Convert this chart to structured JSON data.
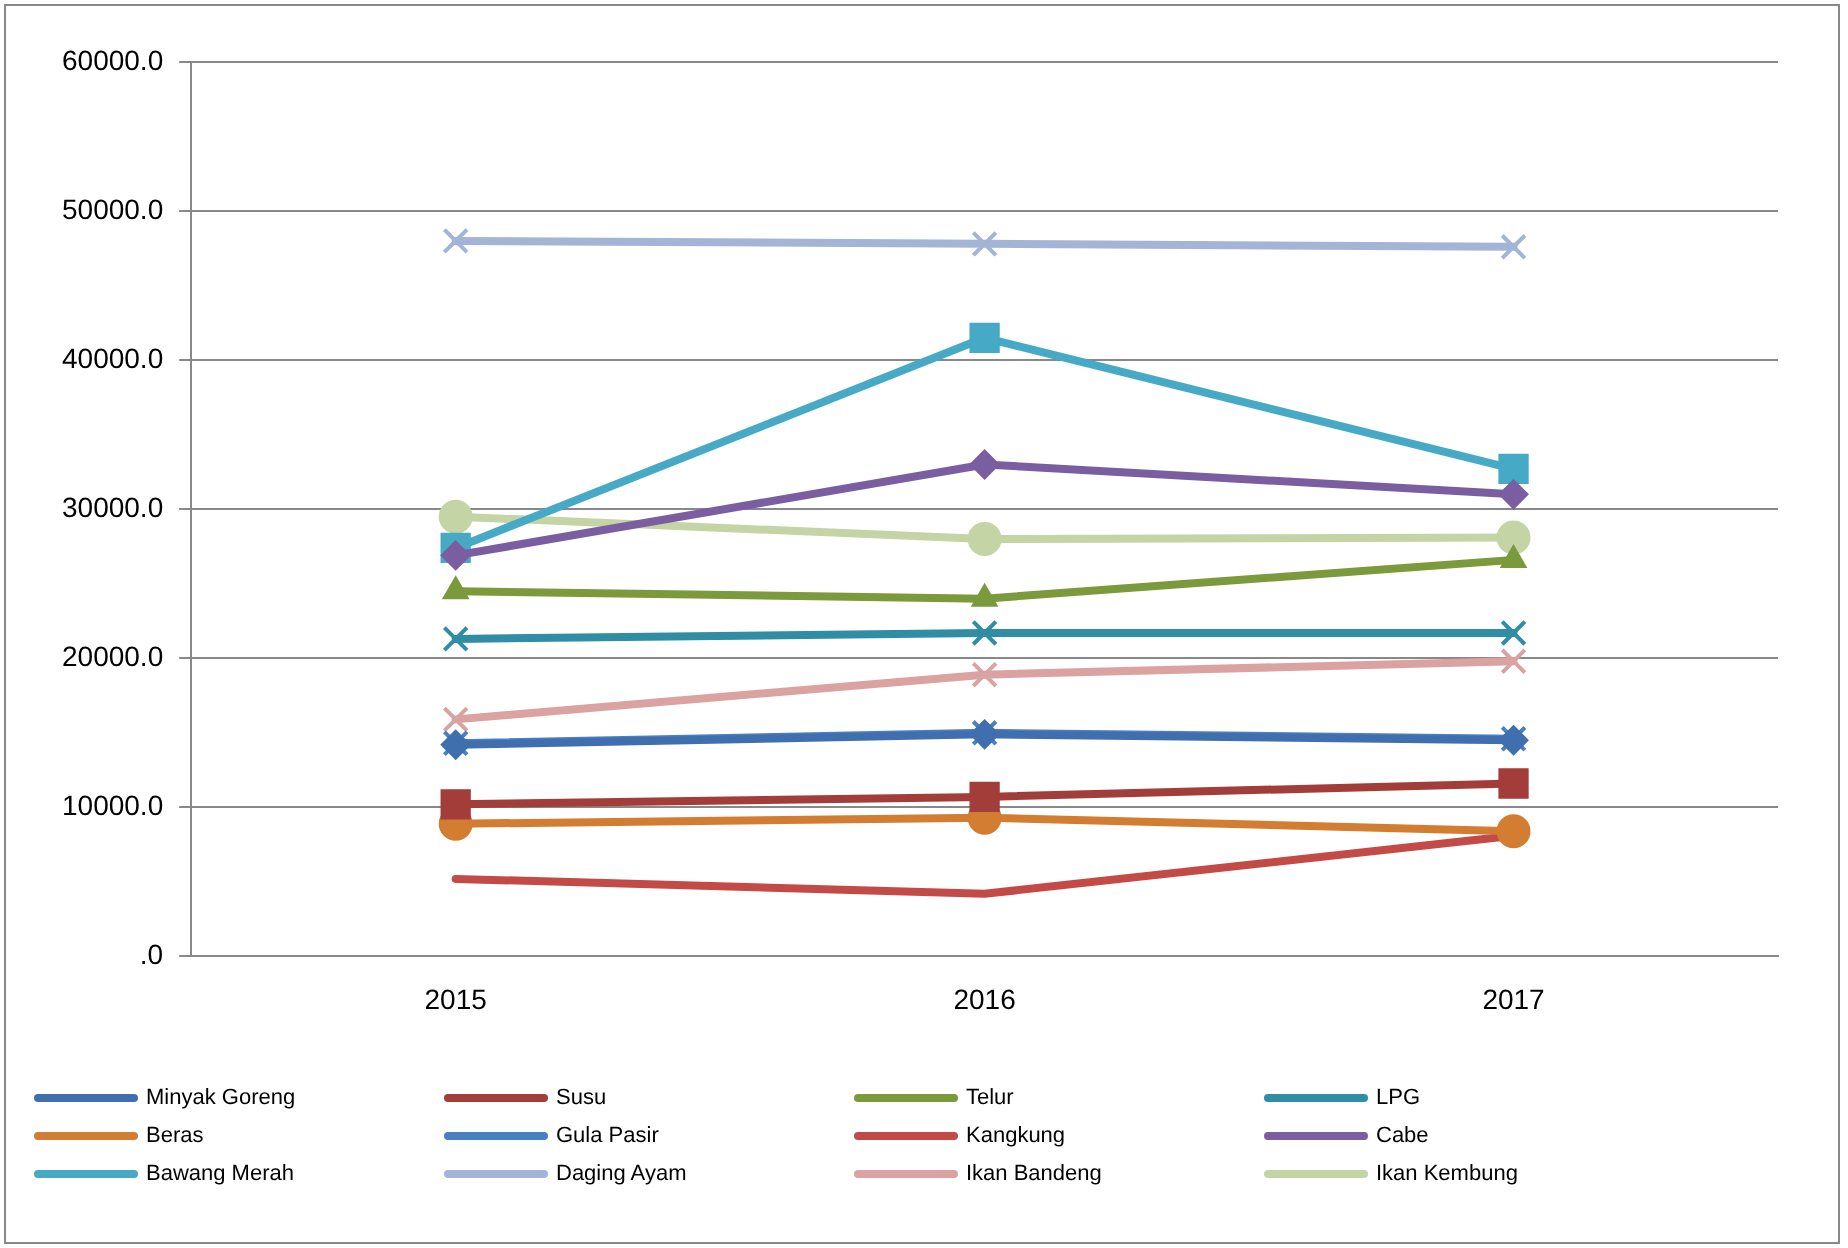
{
  "chart_data": {
    "type": "line",
    "categories": [
      "2015",
      "2016",
      "2017"
    ],
    "ylim": [
      0,
      60000
    ],
    "yticks": [
      {
        "value": 0,
        "label": ".0"
      },
      {
        "value": 10000,
        "label": "10000.0"
      },
      {
        "value": 20000,
        "label": "20000.0"
      },
      {
        "value": 30000,
        "label": "30000.0"
      },
      {
        "value": 40000,
        "label": "40000.0"
      },
      {
        "value": 50000,
        "label": "50000.0"
      },
      {
        "value": 60000,
        "label": "60000.0"
      }
    ],
    "grid": "y",
    "legend": "bottom",
    "series": [
      {
        "name": "Minyak Goreng",
        "color": "#3f6fae",
        "marker": "diamond",
        "values": [
          14200,
          14900,
          14500
        ]
      },
      {
        "name": "Susu",
        "color": "#a33d3a",
        "marker": "square",
        "values": [
          10200,
          10700,
          11600
        ]
      },
      {
        "name": "Telur",
        "color": "#7a9a3c",
        "marker": "triangle",
        "values": [
          24500,
          24000,
          26600
        ]
      },
      {
        "name": "LPG",
        "color": "#2f8ea3",
        "marker": "cross",
        "values": [
          21300,
          21700,
          21700
        ]
      },
      {
        "name": "Beras",
        "color": "#d27d32",
        "marker": "circle",
        "values": [
          8900,
          9300,
          8400
        ]
      },
      {
        "name": "Gula Pasir",
        "color": "#4a7fc0",
        "marker": "cross",
        "values": [
          14300,
          15000,
          14600
        ]
      },
      {
        "name": "Kangkung",
        "color": "#c44a48",
        "marker": "none",
        "values": [
          5200,
          4200,
          8100
        ]
      },
      {
        "name": "Cabe",
        "color": "#7b5ea1",
        "marker": "diamond",
        "values": [
          26900,
          33000,
          31000
        ]
      },
      {
        "name": "Bawang Merah",
        "color": "#46a9c6",
        "marker": "square",
        "values": [
          27400,
          41500,
          32700
        ]
      },
      {
        "name": "Daging Ayam",
        "color": "#a3b4d6",
        "marker": "cross",
        "values": [
          48000,
          47800,
          47600
        ]
      },
      {
        "name": "Ikan Bandeng",
        "color": "#daa3a2",
        "marker": "cross",
        "values": [
          15900,
          18900,
          19800
        ]
      },
      {
        "name": "Ikan Kembung",
        "color": "#c4d4a4",
        "marker": "circle",
        "values": [
          29500,
          28000,
          28100
        ]
      }
    ]
  }
}
